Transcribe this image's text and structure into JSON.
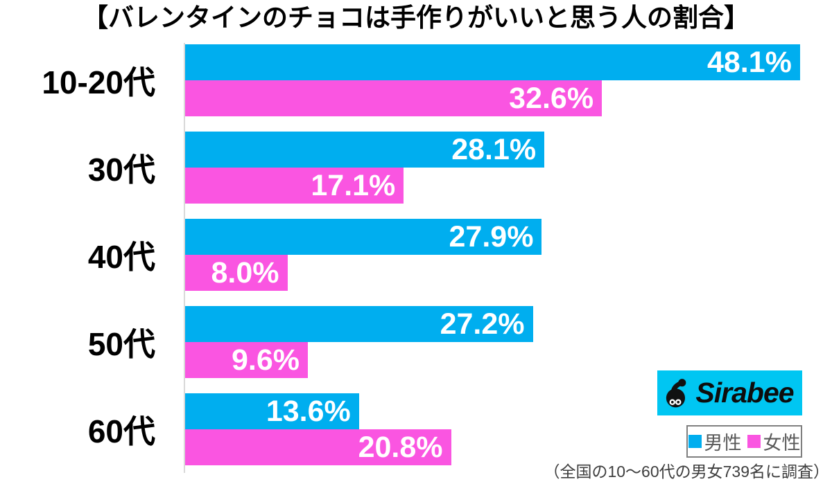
{
  "title": "【バレンタインのチョコは手作りがいいと思う人の割合】",
  "chart_data": {
    "type": "bar",
    "orientation": "horizontal",
    "title": "【バレンタインのチョコは手作りがいいと思う人の割合】",
    "categories": [
      "10-20代",
      "30代",
      "40代",
      "50代",
      "60代"
    ],
    "series": [
      {
        "key": "male",
        "name": "男性",
        "color": "#00aeef",
        "values": [
          48.1,
          28.1,
          27.9,
          27.2,
          13.6
        ],
        "labels": [
          "48.1%",
          "28.1%",
          "27.9%",
          "27.2%",
          "13.6%"
        ]
      },
      {
        "key": "female",
        "name": "女性",
        "color": "#fa55e1",
        "values": [
          32.6,
          17.1,
          8.0,
          9.6,
          20.8
        ],
        "labels": [
          "32.6%",
          "17.1%",
          "8.0%",
          "9.6%",
          "20.8%"
        ]
      }
    ],
    "value_suffix": "%",
    "xlim": [
      0,
      50.6
    ],
    "grid": false,
    "legend_position": "bottom-right"
  },
  "legend": {
    "items": [
      {
        "label": "男性",
        "color": "#00aeef"
      },
      {
        "label": "女性",
        "color": "#fa55e1"
      }
    ]
  },
  "logo": {
    "text": "Sirabee",
    "background": "#00c6f2",
    "mascot_icon": "sirabee-mascot"
  },
  "footnote": "（全国の10〜60代の男女739名に調査）",
  "colors": {
    "male_bar": "#00aeef",
    "female_bar": "#fa55e1",
    "axis_line": "#d9d9d9",
    "value_text": "#ffffff",
    "legend_text": "#595959",
    "footnote_text": "#3d3d3d"
  }
}
